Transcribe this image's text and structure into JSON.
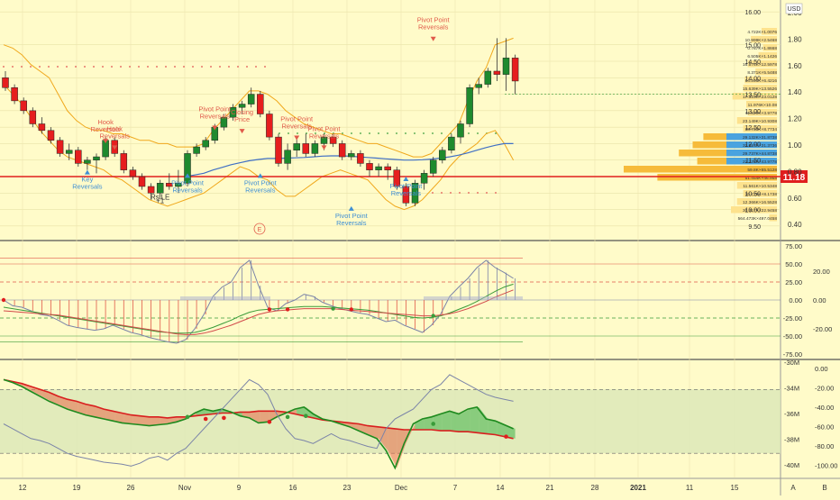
{
  "chart_data": [
    {
      "type": "candlestick",
      "currency": "USD",
      "ylim": [
        9.25,
        16.25
      ],
      "y_ticks": [
        "2.00",
        "1.80",
        "1.60",
        "1.40",
        "1.20",
        "1.00",
        "0.80",
        "0.60",
        "0.40"
      ],
      "y_ticks_left": [
        "16.00",
        "15.00",
        "14.50",
        "14.00",
        "13.50",
        "13.00",
        "12.50",
        "12.00",
        "11.50",
        "11.00",
        "10.50",
        "10.00",
        "9.50"
      ],
      "last_price": "11.18",
      "ohlc": [
        [
          14.0,
          14.2,
          13.6,
          13.7
        ],
        [
          13.7,
          13.8,
          13.2,
          13.3
        ],
        [
          13.3,
          13.4,
          12.9,
          13.0
        ],
        [
          13.0,
          13.1,
          12.5,
          12.6
        ],
        [
          12.6,
          12.8,
          12.3,
          12.4
        ],
        [
          12.4,
          12.5,
          12.0,
          12.1
        ],
        [
          12.1,
          12.2,
          11.6,
          11.7
        ],
        [
          11.7,
          12.0,
          11.5,
          11.8
        ],
        [
          11.8,
          11.9,
          11.3,
          11.4
        ],
        [
          11.4,
          11.6,
          11.2,
          11.5
        ],
        [
          11.5,
          11.7,
          11.1,
          11.6
        ],
        [
          11.6,
          12.2,
          11.5,
          12.1
        ],
        [
          12.1,
          12.2,
          11.6,
          11.7
        ],
        [
          11.7,
          11.8,
          11.1,
          11.2
        ],
        [
          11.2,
          11.3,
          10.9,
          11.0
        ],
        [
          11.0,
          11.1,
          10.6,
          10.7
        ],
        [
          10.7,
          10.8,
          10.3,
          10.5
        ],
        [
          10.5,
          10.9,
          10.4,
          10.8
        ],
        [
          10.8,
          11.1,
          10.6,
          10.7
        ],
        [
          10.7,
          11.2,
          10.5,
          10.8
        ],
        [
          10.8,
          11.8,
          10.7,
          11.7
        ],
        [
          11.7,
          12.0,
          11.6,
          11.9
        ],
        [
          11.9,
          12.2,
          11.8,
          12.1
        ],
        [
          12.1,
          12.6,
          12.0,
          12.5
        ],
        [
          12.5,
          12.9,
          12.4,
          12.8
        ],
        [
          12.8,
          13.2,
          12.7,
          13.1
        ],
        [
          13.1,
          13.3,
          12.9,
          13.2
        ],
        [
          13.2,
          13.7,
          13.1,
          13.5
        ],
        [
          13.5,
          13.6,
          12.8,
          12.9
        ],
        [
          12.9,
          13.0,
          12.1,
          12.2
        ],
        [
          12.2,
          12.3,
          11.3,
          11.4
        ],
        [
          11.4,
          12.0,
          11.2,
          11.8
        ],
        [
          11.8,
          12.2,
          11.6,
          12.0
        ],
        [
          12.0,
          12.3,
          11.6,
          11.7
        ],
        [
          11.7,
          12.1,
          11.6,
          12.0
        ],
        [
          12.0,
          12.3,
          11.8,
          12.2
        ],
        [
          12.2,
          12.3,
          11.9,
          12.0
        ],
        [
          12.0,
          12.1,
          11.5,
          11.6
        ],
        [
          11.6,
          11.8,
          11.5,
          11.7
        ],
        [
          11.7,
          11.8,
          11.3,
          11.4
        ],
        [
          11.4,
          11.5,
          11.0,
          11.2
        ],
        [
          11.2,
          11.4,
          11.0,
          11.3
        ],
        [
          11.3,
          11.4,
          10.9,
          11.2
        ],
        [
          11.2,
          11.3,
          10.6,
          10.7
        ],
        [
          10.7,
          10.8,
          10.1,
          10.2
        ],
        [
          10.2,
          10.9,
          10.1,
          10.8
        ],
        [
          10.8,
          11.2,
          10.6,
          11.1
        ],
        [
          11.1,
          11.6,
          11.0,
          11.5
        ],
        [
          11.5,
          11.9,
          11.4,
          11.8
        ],
        [
          11.8,
          12.3,
          11.7,
          12.2
        ],
        [
          12.2,
          12.7,
          12.0,
          12.6
        ],
        [
          12.6,
          13.8,
          12.5,
          13.7
        ],
        [
          13.7,
          14.0,
          13.5,
          13.8
        ],
        [
          13.8,
          14.3,
          13.7,
          14.2
        ],
        [
          14.2,
          15.2,
          13.9,
          14.1
        ],
        [
          14.1,
          15.2,
          13.6,
          14.6
        ],
        [
          14.6,
          14.7,
          13.5,
          13.9
        ]
      ],
      "donchian_upper": [
        15.0,
        14.9,
        14.7,
        14.4,
        14.2,
        14.0,
        13.5,
        13.0,
        12.7,
        12.5,
        12.4,
        12.4,
        12.3,
        12.3,
        12.2,
        12.1,
        12.1,
        12.0,
        12.0,
        11.9,
        11.9,
        11.9,
        12.0,
        12.4,
        12.7,
        13.0,
        13.3,
        13.6,
        13.6,
        13.5,
        13.3,
        13.0,
        12.8,
        12.6,
        12.5,
        12.4,
        12.3,
        12.3,
        12.2,
        12.1,
        12.0,
        12.0,
        11.9,
        11.8,
        11.7,
        11.6,
        11.6,
        11.7,
        12.0,
        12.3,
        12.6,
        13.3,
        13.9,
        14.3,
        15.0,
        15.1,
        15.2
      ],
      "donchian_lower": [
        13.8,
        13.5,
        13.2,
        12.8,
        12.4,
        12.1,
        11.8,
        11.6,
        11.5,
        11.4,
        11.3,
        11.2,
        11.0,
        10.9,
        10.7,
        10.5,
        10.3,
        10.2,
        10.1,
        10.2,
        10.3,
        10.4,
        10.5,
        10.7,
        10.9,
        11.1,
        11.3,
        11.2,
        11.0,
        10.9,
        10.6,
        10.4,
        10.4,
        10.6,
        10.8,
        11.0,
        11.1,
        11.2,
        11.1,
        11.0,
        10.9,
        10.6,
        10.3,
        10.1,
        10.0,
        10.1,
        10.3,
        10.6,
        10.9,
        11.3,
        11.6,
        11.8,
        12.0,
        12.3,
        12.4,
        12.0,
        11.5
      ],
      "moving_average": [
        null,
        null,
        null,
        null,
        null,
        null,
        null,
        null,
        null,
        null,
        null,
        null,
        null,
        null,
        null,
        null,
        null,
        null,
        null,
        null,
        11.0,
        11.05,
        11.1,
        11.2,
        11.28,
        11.36,
        11.42,
        11.48,
        11.52,
        11.55,
        11.55,
        11.56,
        11.57,
        11.58,
        11.6,
        11.62,
        11.63,
        11.63,
        11.62,
        11.6,
        11.58,
        11.56,
        11.54,
        11.52,
        11.5,
        11.5,
        11.51,
        11.53,
        11.56,
        11.6,
        11.65,
        11.72,
        11.8,
        11.88,
        11.95,
        12.0,
        12.0
      ],
      "annotations": [
        {
          "text": "Key Reversals",
          "type": "blue",
          "index": 9,
          "price": 11.2
        },
        {
          "text": "Hook Reversals",
          "type": "red",
          "index": 11,
          "price": 12.2
        },
        {
          "text": "Hook Reversals",
          "type": "red",
          "index": 12,
          "price": 12.0
        },
        {
          "text": "RsiLE",
          "type": "label",
          "index": 17,
          "price": 10.3
        },
        {
          "text": "+1",
          "type": "label",
          "index": 17,
          "price": 10.2
        },
        {
          "text": "Pivot Point Reversals",
          "type": "blue",
          "index": 20,
          "price": 11.1
        },
        {
          "text": "Pivot Point Reversals",
          "type": "red",
          "index": 23,
          "price": 12.6
        },
        {
          "text": "Closing Price",
          "type": "red",
          "index": 26,
          "price": 12.5
        },
        {
          "text": "Pivot Point Reversals",
          "type": "blue",
          "index": 28,
          "price": 11.1
        },
        {
          "text": "Pivot Point Reversals",
          "type": "red",
          "index": 32,
          "price": 12.3
        },
        {
          "text": "Pivot Point Reversals",
          "type": "red",
          "index": 35,
          "price": 12.0
        },
        {
          "text": "Pivot Point Reversals",
          "type": "blue",
          "index": 38,
          "price": 10.1
        },
        {
          "text": "Pivot Point Reversals",
          "type": "blue",
          "index": 44,
          "price": 11.0
        },
        {
          "text": "Pivot Point Reversals",
          "type": "red",
          "index": 47,
          "price": 15.3
        }
      ],
      "earnings_marker": "E",
      "volume_profile": [
        {
          "label": "4.722K×1.0076",
          "value": 0.1
        },
        {
          "label": "10.999K×2.5468",
          "value": 0.17
        },
        {
          "label": "0.767K×1.8668",
          "value": 0.09
        },
        {
          "label": "6.505K×1.1426",
          "value": 0.12
        },
        {
          "label": "16.576K×12.5978",
          "value": 0.19
        },
        {
          "label": "8.371K×5.5488",
          "value": 0.14
        },
        {
          "label": "14.346K×6.4216",
          "value": 0.21
        },
        {
          "label": "15.639K×13.5526",
          "value": 0.22
        },
        {
          "label": "17.323K×23.0128",
          "value": 0.29
        },
        {
          "label": "11.976K×10.08",
          "value": 0.2
        },
        {
          "label": "11.829K×3.9778",
          "value": 0.19
        },
        {
          "label": "23.149K×10.9308",
          "value": 0.26
        },
        {
          "label": "18.733K×8.7734",
          "value": 0.22
        },
        {
          "label": "29.132K×31.8738",
          "value": 0.48
        },
        {
          "label": "32.957K×31.3736",
          "value": 0.55
        },
        {
          "label": "29.737K×44.8738",
          "value": 0.64
        },
        {
          "label": "22.278K×43.9778",
          "value": 0.52
        },
        {
          "label": "59.8K×65.5128",
          "value": 1.0
        },
        {
          "label": "51.454K×46.958",
          "value": 0.78
        },
        {
          "label": "11.561K×10.5348",
          "value": 0.26
        },
        {
          "label": "10.729K×8.1738",
          "value": 0.22
        },
        {
          "label": "12.366K×16.5528",
          "value": 0.26
        },
        {
          "label": "30.317K×22.9458",
          "value": 0.3
        },
        {
          "label": "564.473K×497.0458",
          "value": 0.05
        }
      ]
    },
    {
      "type": "line",
      "ylim": [
        -75,
        75
      ],
      "y_ticks": [
        "75.00",
        "50.00",
        "25.00",
        "0.00",
        "-25.00",
        "-50.00",
        "-75.00"
      ],
      "y_ticks_right": [
        "20.00",
        "0.00",
        "-20.00"
      ],
      "series": [
        {
          "color": "#7b84a8",
          "values": [
            0,
            -8,
            -10,
            -15,
            -20,
            -22,
            -28,
            -35,
            -38,
            -40,
            -42,
            -40,
            -35,
            -40,
            -45,
            -48,
            -52,
            -55,
            -58,
            -60,
            -55,
            -40,
            -20,
            5,
            18,
            25,
            45,
            55,
            20,
            -10,
            -15,
            -5,
            0,
            8,
            5,
            -3,
            -8,
            -12,
            -15,
            -18,
            -20,
            -25,
            -30,
            -28,
            -35,
            -40,
            -45,
            -35,
            -20,
            5,
            18,
            30,
            45,
            55,
            45,
            38,
            30
          ]
        },
        {
          "color": "#3a9c3a",
          "values": [
            -10,
            -12,
            -14,
            -16,
            -18,
            -20,
            -22,
            -24,
            -26,
            -28,
            -30,
            -32,
            -34,
            -36,
            -38,
            -40,
            -42,
            -44,
            -45,
            -46,
            -46,
            -45,
            -42,
            -38,
            -33,
            -28,
            -22,
            -17,
            -14,
            -13,
            -12,
            -11,
            -10,
            -9,
            -9,
            -9,
            -10,
            -11,
            -12,
            -13,
            -14,
            -16,
            -18,
            -20,
            -22,
            -24,
            -25,
            -24,
            -22,
            -18,
            -13,
            -8,
            -2,
            5,
            12,
            18,
            22
          ]
        },
        {
          "color": "#d24a4a",
          "values": [
            -15,
            -16,
            -17,
            -18,
            -19,
            -20,
            -21,
            -23,
            -25,
            -27,
            -29,
            -31,
            -33,
            -35,
            -37,
            -39,
            -41,
            -43,
            -45,
            -47,
            -48,
            -48,
            -46,
            -43,
            -39,
            -35,
            -30,
            -25,
            -20,
            -17,
            -15,
            -14,
            -13,
            -12,
            -12,
            -12,
            -12,
            -13,
            -14,
            -15,
            -16,
            -17,
            -18,
            -19,
            -20,
            -21,
            -22,
            -22,
            -21,
            -19,
            -16,
            -12,
            -7,
            -2,
            4,
            9,
            14
          ]
        }
      ]
    },
    {
      "type": "area",
      "ylim": [
        -105,
        5
      ],
      "y_ticks": [
        "-30M",
        "-34M",
        "-36M",
        "-38M",
        "-40M"
      ],
      "y_ticks_right": [
        "0.00",
        "-20.00",
        "-40.00",
        "-60.00",
        "-80.00",
        "-100.00"
      ],
      "series": [
        {
          "name": "",
          "color": "#d91e1e",
          "values": [
            -10,
            -12,
            -14,
            -17,
            -20,
            -23,
            -27,
            -30,
            -32,
            -35,
            -37,
            -40,
            -42,
            -44,
            -46,
            -47,
            -48,
            -48,
            -49,
            -48,
            -48,
            -47,
            -46,
            -45,
            -44,
            -44,
            -43,
            -43,
            -42,
            -42,
            -42,
            -43,
            -45,
            -47,
            -49,
            -51,
            -52,
            -53,
            -54,
            -55,
            -57,
            -58,
            -59,
            -60,
            -61,
            -61,
            -61,
            -61,
            -62,
            -62,
            -63,
            -63,
            -64,
            -65,
            -66,
            -68,
            -70
          ]
        },
        {
          "name": "",
          "color": "#1e8a1e",
          "values": [
            -10,
            -13,
            -17,
            -22,
            -27,
            -32,
            -36,
            -40,
            -43,
            -46,
            -48,
            -50,
            -52,
            -54,
            -55,
            -56,
            -57,
            -56,
            -55,
            -53,
            -50,
            -44,
            -40,
            -42,
            -40,
            -43,
            -47,
            -49,
            -54,
            -53,
            -48,
            -44,
            -40,
            -38,
            -45,
            -50,
            -52,
            -55,
            -58,
            -62,
            -66,
            -70,
            -82,
            -100,
            -75,
            -55,
            -50,
            -48,
            -45,
            -42,
            -45,
            -40,
            -38,
            -50,
            -52,
            -56,
            -60
          ]
        },
        {
          "name": "",
          "color": "#7b84a8",
          "values": [
            -55,
            -60,
            -65,
            -70,
            -72,
            -75,
            -80,
            -85,
            -88,
            -90,
            -92,
            -94,
            -95,
            -96,
            -98,
            -95,
            -90,
            -88,
            -92,
            -85,
            -80,
            -70,
            -60,
            -50,
            -40,
            -30,
            -20,
            -10,
            -15,
            -25,
            -45,
            -60,
            -70,
            -72,
            -75,
            -70,
            -65,
            -70,
            -72,
            -75,
            -78,
            -80,
            -60,
            -50,
            -45,
            -40,
            -30,
            -20,
            -15,
            -5,
            -10,
            -15,
            -20,
            -25,
            -28,
            -30,
            -32
          ]
        }
      ]
    }
  ],
  "x_axis": {
    "labels": [
      "12",
      "19",
      "26",
      "Nov",
      "9",
      "16",
      "23",
      "Dec",
      "7",
      "14",
      "21",
      "28",
      "2021",
      "11",
      "15",
      "A",
      "B"
    ]
  },
  "top_right_label": "USD"
}
